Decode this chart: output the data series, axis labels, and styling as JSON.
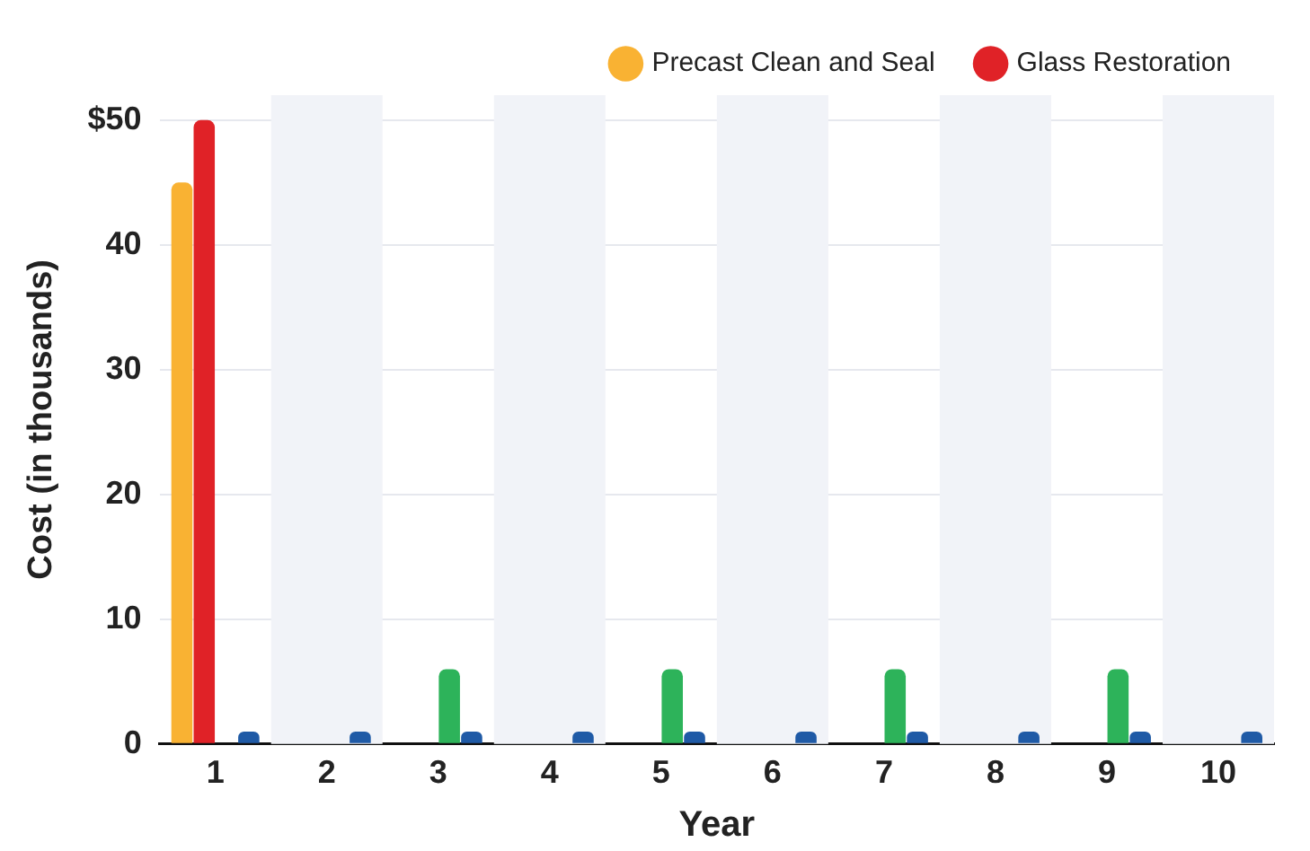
{
  "chart_data": {
    "type": "bar",
    "xlabel": "Year",
    "ylabel": "Cost (in thousands)",
    "categories": [
      "1",
      "2",
      "3",
      "4",
      "5",
      "6",
      "7",
      "8",
      "9",
      "10"
    ],
    "series": [
      {
        "name": "Precast Clean and Seal",
        "color": "#f9b233",
        "values": [
          45,
          null,
          null,
          null,
          null,
          null,
          null,
          null,
          null,
          null
        ]
      },
      {
        "name": "Glass Restoration",
        "color": "#e02227",
        "values": [
          50,
          null,
          null,
          null,
          null,
          null,
          null,
          null,
          null,
          null
        ]
      },
      {
        "color": "#2db35a",
        "values": [
          null,
          null,
          6,
          null,
          6,
          null,
          6,
          null,
          6,
          null
        ]
      },
      {
        "color": "#1f5aa6",
        "values": [
          1,
          1,
          1,
          1,
          1,
          1,
          1,
          1,
          1,
          1
        ]
      }
    ],
    "ylim": [
      0,
      52
    ],
    "yticks": [
      0,
      10,
      20,
      30,
      40,
      {
        "value": 50,
        "label": "$50"
      }
    ],
    "grid": "y",
    "legend": "top right"
  }
}
